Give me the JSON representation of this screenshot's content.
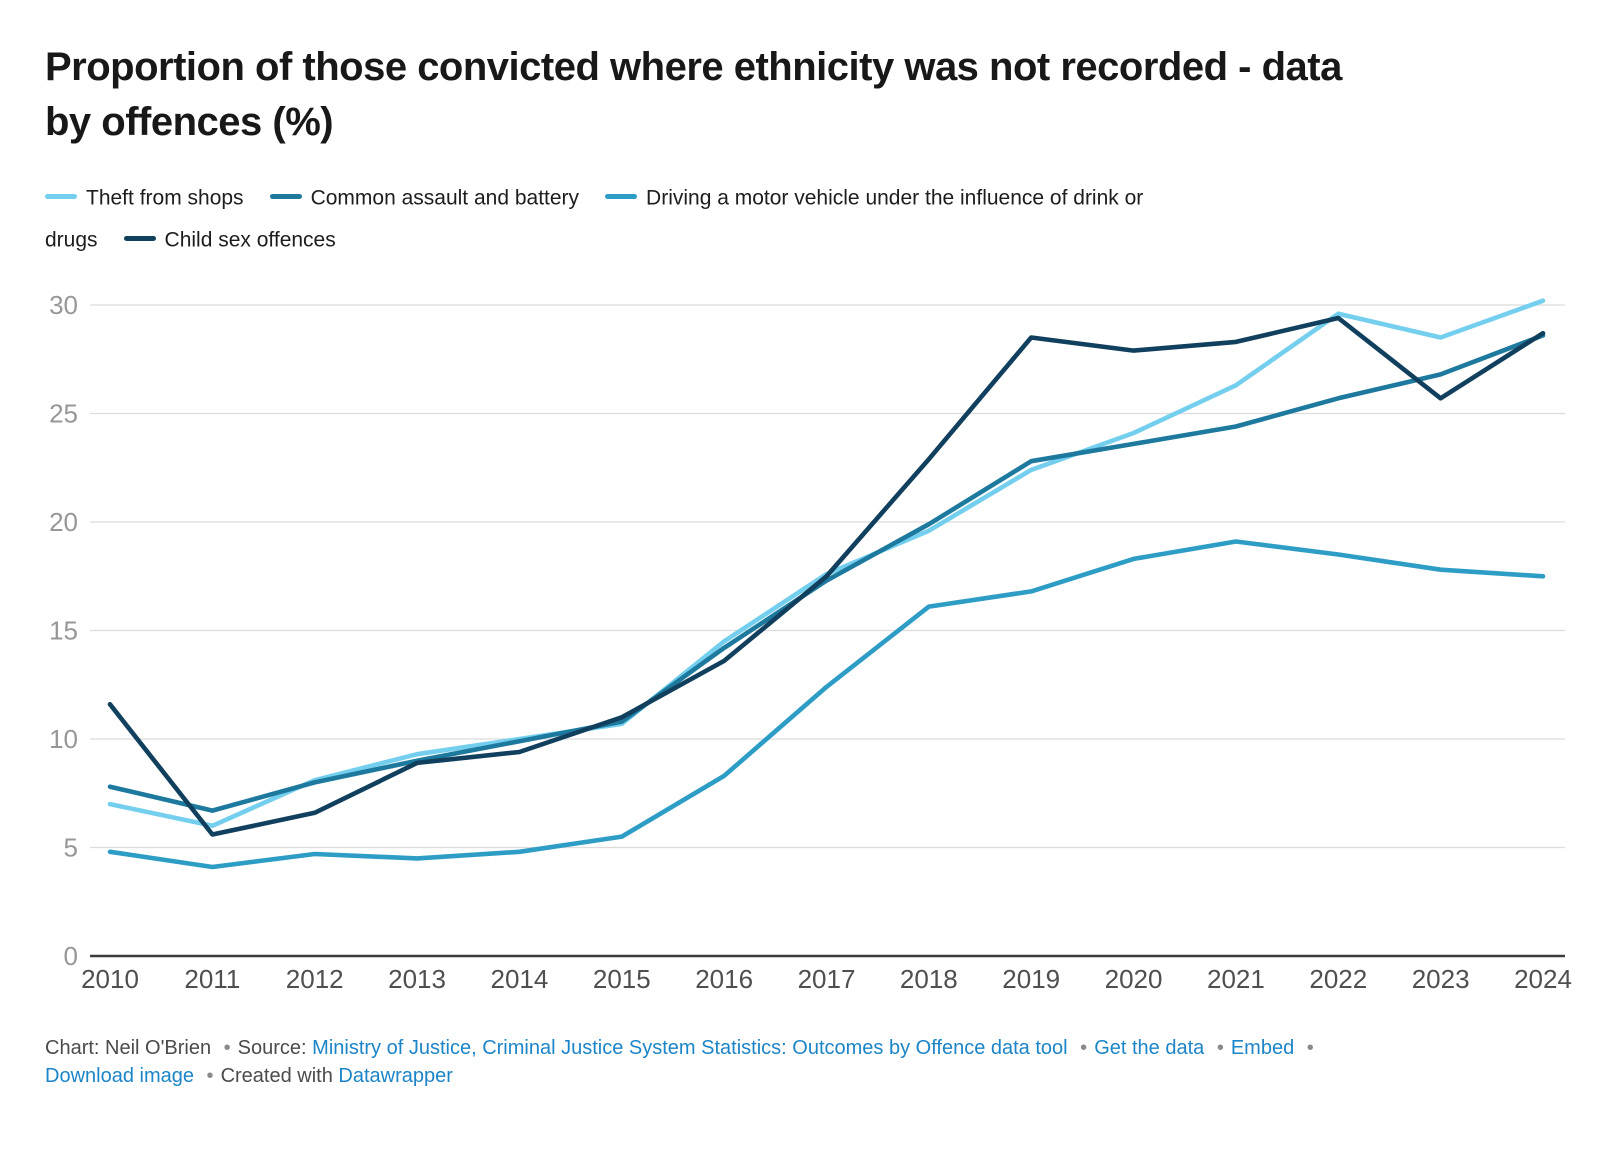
{
  "title_lines": [
    "Proportion of those convicted where ethnicity was not recorded - data",
    "by offences (%)"
  ],
  "legend": {
    "rows": [
      [
        {
          "swatch": "#74cfee",
          "text": "Theft from shops"
        },
        {
          "swatch": "#1d7a9e",
          "text": "Common assault and battery"
        },
        {
          "swatch": "#2d9dc6",
          "text": "Driving a motor vehicle under the influence of drink or"
        }
      ],
      [
        {
          "swatch": null,
          "text": "drugs"
        },
        {
          "swatch": "#11405e",
          "text": "Child sex offences"
        }
      ]
    ]
  },
  "chart_data": {
    "type": "line",
    "title": "Proportion of those convicted where ethnicity was not recorded - data by offences (%)",
    "xlabel": "",
    "ylabel": "",
    "x": [
      2010,
      2011,
      2012,
      2013,
      2014,
      2015,
      2016,
      2017,
      2018,
      2019,
      2020,
      2021,
      2022,
      2023,
      2024
    ],
    "series": [
      {
        "name": "Theft from shops",
        "color": "#74cfee",
        "values": [
          7.0,
          6.0,
          8.1,
          9.3,
          10.0,
          10.7,
          14.5,
          17.6,
          19.6,
          22.4,
          24.1,
          26.3,
          29.6,
          28.5,
          30.2
        ]
      },
      {
        "name": "Common assault and battery",
        "color": "#1d7a9e",
        "values": [
          7.8,
          6.7,
          8.0,
          9.0,
          9.9,
          10.8,
          14.2,
          17.3,
          19.9,
          22.8,
          23.6,
          24.4,
          25.7,
          26.8,
          28.6
        ]
      },
      {
        "name": "Driving a motor vehicle under the influence of drink or drugs",
        "color": "#2d9dc6",
        "values": [
          4.8,
          4.1,
          4.7,
          4.5,
          4.8,
          5.5,
          8.3,
          12.4,
          16.1,
          16.8,
          18.3,
          19.1,
          18.5,
          17.8,
          17.5
        ]
      },
      {
        "name": "Child sex offences",
        "color": "#11405e",
        "values": [
          11.6,
          5.6,
          6.6,
          8.9,
          9.4,
          11.0,
          13.6,
          17.5,
          22.9,
          28.5,
          27.9,
          28.3,
          29.4,
          25.7,
          28.7
        ]
      }
    ],
    "ylim": [
      0,
      30
    ],
    "yticks": [
      0,
      5,
      10,
      15,
      20,
      25,
      30
    ],
    "grid": "horizontal",
    "legend_position": "top",
    "axis_colors": {
      "grid": "#dcdcdc",
      "baseline": "#3c3c3c",
      "y_tick_text": "#979797",
      "x_tick_text": "#4f4f4f"
    }
  },
  "footer": {
    "separator": "•",
    "segments": [
      {
        "type": "text",
        "text": "Chart: Neil O'Brien"
      },
      {
        "type": "sep"
      },
      {
        "type": "text",
        "text": "Source:"
      },
      {
        "type": "link",
        "text": "Ministry of Justice, Criminal Justice System Statistics: Outcomes by Offence data tool"
      },
      {
        "type": "sep"
      },
      {
        "type": "link",
        "text": "Get the data"
      },
      {
        "type": "sep"
      },
      {
        "type": "link",
        "text": "Embed"
      },
      {
        "type": "sep"
      },
      {
        "type": "break"
      },
      {
        "type": "link",
        "text": "Download image"
      },
      {
        "type": "sep"
      },
      {
        "type": "text",
        "text": "Created with"
      },
      {
        "type": "link",
        "text": "Datawrapper"
      }
    ]
  }
}
